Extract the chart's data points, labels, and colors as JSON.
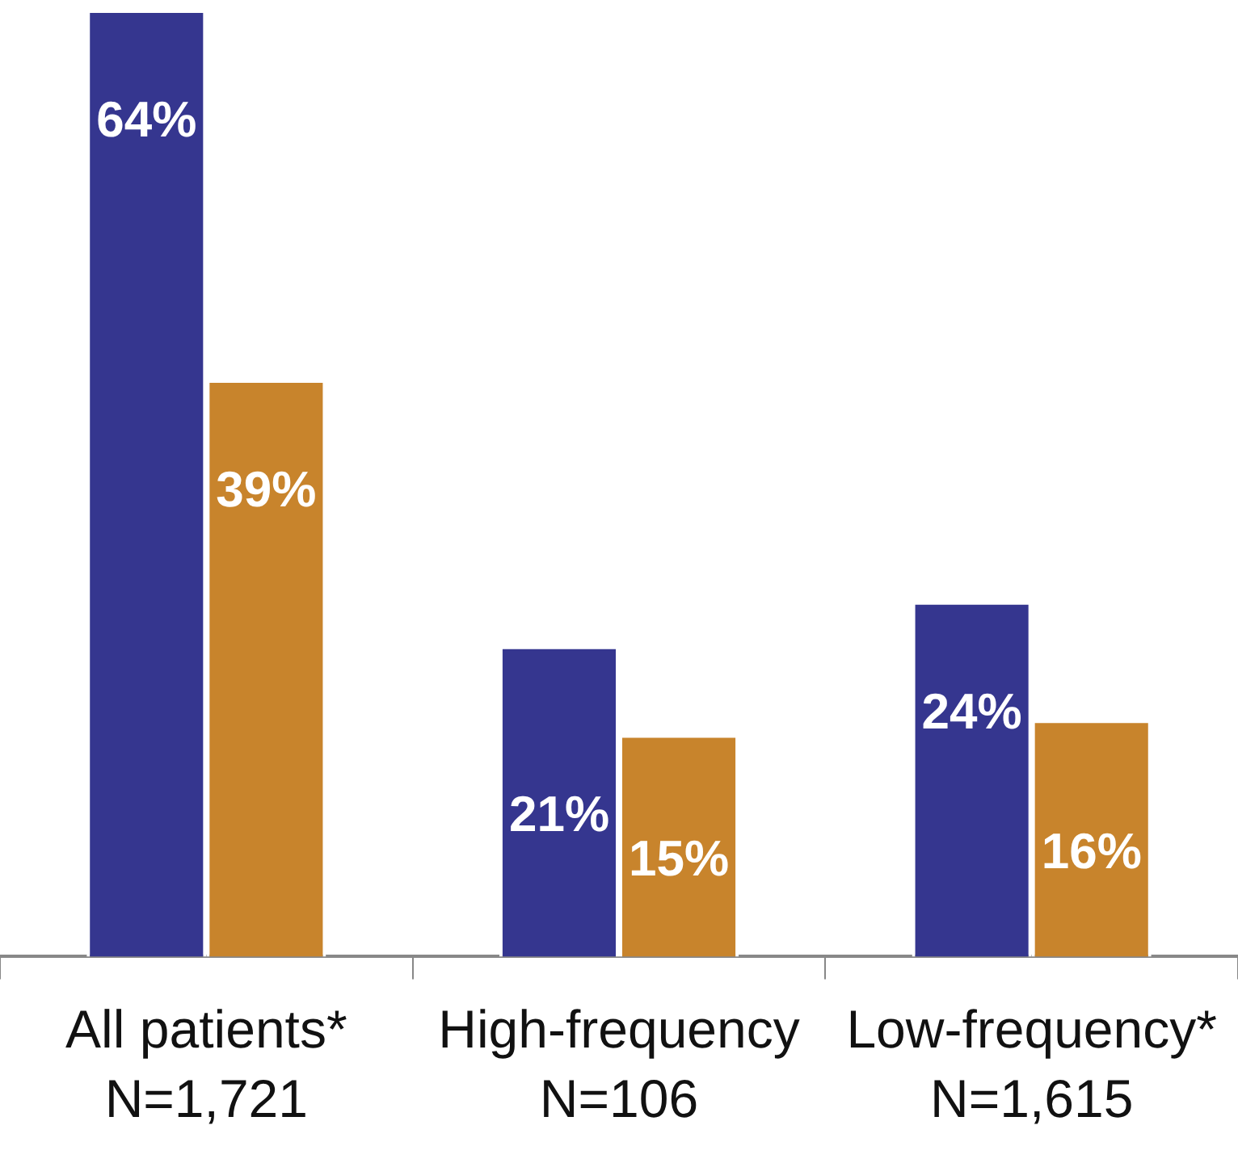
{
  "chart_data": {
    "type": "bar",
    "categories": [
      "All patients*\nN=1,721",
      "High-frequency\nN=106",
      "Low-frequency*\nN=1,615"
    ],
    "series": [
      {
        "color": "#35368f",
        "values": [
          64,
          21,
          24
        ],
        "value_labels": [
          "64%",
          "21%",
          "24%"
        ]
      },
      {
        "color": "#c8842c",
        "values": [
          39,
          15,
          16
        ],
        "value_labels": [
          "39%",
          "15%",
          "16%"
        ]
      }
    ],
    "grid": false,
    "legend": false,
    "tick_labels": "x"
  }
}
